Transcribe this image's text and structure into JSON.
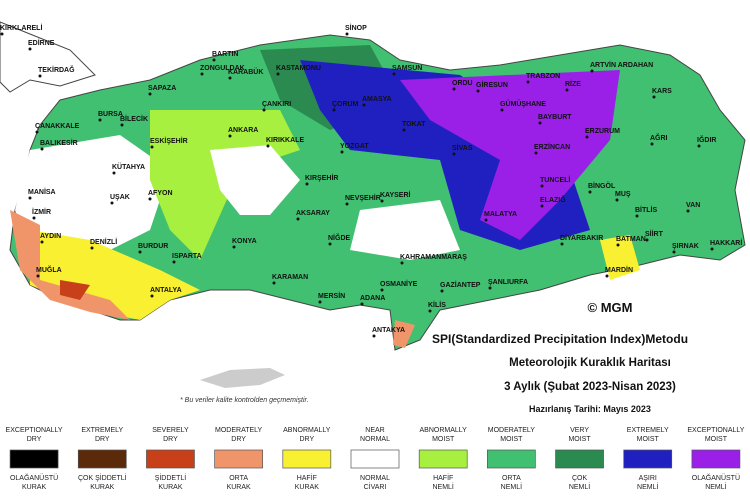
{
  "map": {
    "cities": [
      "KIRKLARELİ",
      "EDİRNE",
      "TEKİRDAĞ",
      "ÇANAKKALE",
      "BALIKESİR",
      "MANİSA",
      "İZMİR",
      "AYDIN",
      "MUĞLA",
      "DENİZLİ",
      "BURDUR",
      "ISPARTA",
      "ANTALYA",
      "UŞAK",
      "AFYON",
      "KÜTAHYA",
      "BİLECİK",
      "BURSA",
      "SAPAZA",
      "ESKİŞEHİR",
      "ZONGULDAK",
      "BARTIN",
      "KARABÜK",
      "KASTAMONU",
      "SİNOP",
      "SAMSUN",
      "ÇANKIRI",
      "ANKARA",
      "KIRIKKALE",
      "ÇORUM",
      "AMASYA",
      "TOKAT",
      "ORDU",
      "GİRESUN",
      "TRABZON",
      "ARTVİN ARDAHAN",
      "RİZE",
      "GÜMÜŞHANE",
      "BAYBURT",
      "KARS",
      "ERZURUM",
      "AĞRI",
      "IĞDIR",
      "SİVAS",
      "ERZİNCAN",
      "YOZGAT",
      "KIRŞEHİR",
      "NEVŞEHİR",
      "KAYSERİ",
      "AKSARAY",
      "KONYA",
      "NİĞDE",
      "KARAMAN",
      "MERSİN",
      "ADANA",
      "OSMANİYE",
      "KAHRAMANMARAŞ",
      "GAZİANTEP",
      "KİLİS",
      "ANTAKYA",
      "TUNCELİ",
      "BİNGÖL",
      "MUŞ",
      "BİTLİS",
      "VAN",
      "ELAZIĞ",
      "MALATYA",
      "DİYARBAKIR",
      "BATMAN",
      "SİİRT",
      "ŞIRNAK",
      "HAKKARİ",
      "MARDİN",
      "ŞANLIURFA"
    ],
    "copyright": "© MGM",
    "title_lines": [
      "SPI(Standardized Precipitation Index)Metodu",
      "Meteorolojik Kuraklık Haritası",
      "3 Aylık (Şubat 2023-Nisan 2023)",
      "Hazırlanış Tarihi: Mayıs 2023"
    ],
    "note": "* Bu veriler kalite kontrolden geçmemiştir."
  },
  "legend": {
    "entries": [
      {
        "en": [
          "EXCEPTIONALLY",
          "DRY"
        ],
        "color": "#000000",
        "tr": [
          "OLAĞANÜSTÜ",
          "KURAK"
        ]
      },
      {
        "en": [
          "EXTREMELY",
          "DRY"
        ],
        "color": "#5a2a0a",
        "tr": [
          "ÇOK ŞİDDETLİ",
          "KURAK"
        ]
      },
      {
        "en": [
          "SEVERELY",
          "DRY"
        ],
        "color": "#c8401a",
        "tr": [
          "ŞİDDETLİ",
          "KURAK"
        ]
      },
      {
        "en": [
          "MODERATELY",
          "DRY"
        ],
        "color": "#f0956a",
        "tr": [
          "ORTA",
          "KURAK"
        ]
      },
      {
        "en": [
          "ABNORMALLY",
          "DRY"
        ],
        "color": "#f8f030",
        "tr": [
          "HAFİF",
          "KURAK"
        ]
      },
      {
        "en": [
          "NEAR",
          "NORMAL"
        ],
        "color": "#ffffff",
        "tr": [
          "NORMAL",
          "CİVARI"
        ]
      },
      {
        "en": [
          "ABNORMALLY",
          "MOIST"
        ],
        "color": "#a8f040",
        "tr": [
          "HAFİF",
          "NEMLİ"
        ]
      },
      {
        "en": [
          "MODERATELY",
          "MOIST"
        ],
        "color": "#40c070",
        "tr": [
          "ORTA",
          "NEMLİ"
        ]
      },
      {
        "en": [
          "VERY",
          "MOIST"
        ],
        "color": "#2a8a50",
        "tr": [
          "ÇOK",
          "NEMLİ"
        ]
      },
      {
        "en": [
          "EXTREMELY",
          "MOIST"
        ],
        "color": "#2020c0",
        "tr": [
          "AŞIRI",
          "NEMLİ"
        ]
      },
      {
        "en": [
          "EXCEPTIONALLY",
          "MOIST"
        ],
        "color": "#9a20e8",
        "tr": [
          "OLAĞANÜSTÜ",
          "NEMLİ"
        ]
      }
    ]
  }
}
